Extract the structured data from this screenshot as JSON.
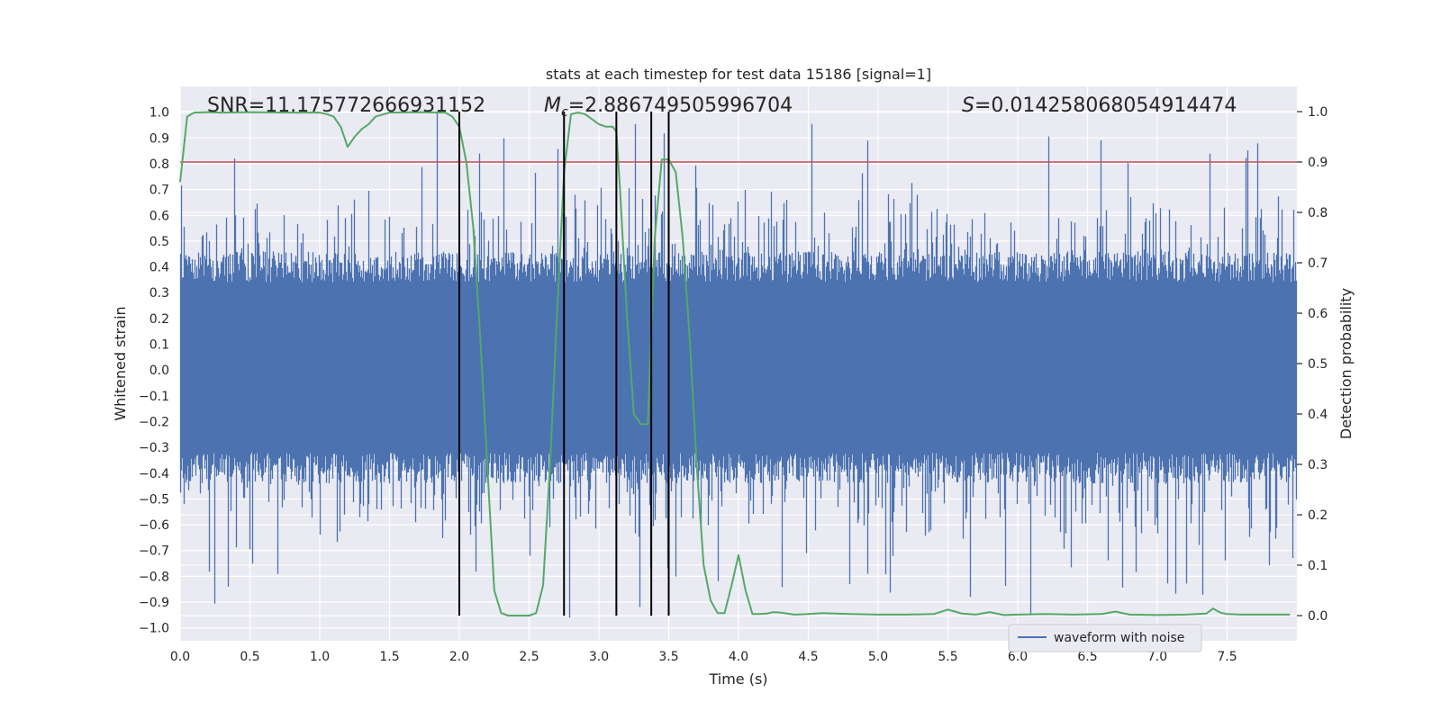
{
  "chart_data": {
    "type": "line",
    "title": "stats at each timestep for test data 15186 [signal=1]",
    "xlabel": "Time (s)",
    "ylabel": "Whitened strain",
    "y2label": "Detection probability",
    "xlim": [
      0.0,
      8.0
    ],
    "ylim": [
      -1.05,
      1.1
    ],
    "y2lim": [
      -0.05,
      1.05
    ],
    "xticks": [
      "0.0",
      "0.5",
      "1.0",
      "1.5",
      "2.0",
      "2.5",
      "3.0",
      "3.5",
      "4.0",
      "4.5",
      "5.0",
      "5.5",
      "6.0",
      "6.5",
      "7.0",
      "7.5"
    ],
    "yticks": [
      "1.0",
      "0.9",
      "0.8",
      "0.7",
      "0.6",
      "0.5",
      "0.4",
      "0.3",
      "0.2",
      "0.1",
      "0.0",
      "-0.1",
      "-0.2",
      "-0.3",
      "-0.4",
      "-0.5",
      "-0.6",
      "-0.7",
      "-0.8",
      "-0.9",
      "-1.0"
    ],
    "y2ticks": [
      "1.0",
      "0.9",
      "0.8",
      "0.7",
      "0.6",
      "0.5",
      "0.4",
      "0.3",
      "0.2",
      "0.1",
      "0.0"
    ],
    "annotations": {
      "snr": "SNR=11.175772666931152",
      "mc_symbol": "M",
      "mc_subscript": "c",
      "mc_value": "=2.886749505996704",
      "s_symbol": "S",
      "s_value": "=0.014258068054914474"
    },
    "legend": {
      "label": "waveform with noise",
      "position": "lower-right"
    },
    "threshold": {
      "value": 0.9,
      "axis": "right",
      "color": "#c44e52"
    },
    "vertical_lines": [
      2.0,
      2.75,
      3.125,
      3.375,
      3.5
    ],
    "series": [
      {
        "name": "waveform with noise",
        "color": "#4c72b0",
        "axis": "left",
        "envelope": {
          "typical_upper": 0.4,
          "typical_lower": -0.38,
          "peak_max": 1.0,
          "peak_min": -0.96
        }
      },
      {
        "name": "detection probability",
        "color": "#55a868",
        "axis": "right",
        "x": [
          0.0,
          0.05,
          0.1,
          0.2,
          0.3,
          0.5,
          0.8,
          1.0,
          1.05,
          1.1,
          1.15,
          1.2,
          1.25,
          1.3,
          1.35,
          1.4,
          1.5,
          1.7,
          1.9,
          1.95,
          2.0,
          2.05,
          2.1,
          2.15,
          2.2,
          2.25,
          2.3,
          2.35,
          2.4,
          2.5,
          2.55,
          2.6,
          2.65,
          2.7,
          2.75,
          2.8,
          2.85,
          2.9,
          2.95,
          3.0,
          3.05,
          3.1,
          3.125,
          3.15,
          3.2,
          3.25,
          3.3,
          3.35,
          3.4,
          3.45,
          3.5,
          3.55,
          3.6,
          3.65,
          3.7,
          3.75,
          3.8,
          3.85,
          3.9,
          3.95,
          4.0,
          4.05,
          4.1,
          4.15,
          4.2,
          4.25,
          4.3,
          4.4,
          4.5,
          4.6,
          4.7,
          4.8,
          5.0,
          5.2,
          5.4,
          5.5,
          5.55,
          5.6,
          5.7,
          5.8,
          5.9,
          6.0,
          6.2,
          6.4,
          6.6,
          6.7,
          6.8,
          7.0,
          7.2,
          7.35,
          7.4,
          7.45,
          7.5,
          7.6,
          7.8,
          7.95
        ],
        "values": [
          0.86,
          0.99,
          0.998,
          0.999,
          0.998,
          0.999,
          0.998,
          0.998,
          0.995,
          0.99,
          0.97,
          0.93,
          0.95,
          0.965,
          0.975,
          0.99,
          0.998,
          0.999,
          0.998,
          0.99,
          0.97,
          0.9,
          0.77,
          0.55,
          0.3,
          0.05,
          0.005,
          0.0,
          0.0,
          0.0,
          0.005,
          0.06,
          0.3,
          0.6,
          0.88,
          0.995,
          0.998,
          0.995,
          0.985,
          0.975,
          0.97,
          0.97,
          0.96,
          0.85,
          0.6,
          0.4,
          0.38,
          0.38,
          0.75,
          0.905,
          0.905,
          0.88,
          0.75,
          0.55,
          0.3,
          0.1,
          0.03,
          0.005,
          0.005,
          0.06,
          0.12,
          0.05,
          0.003,
          0.003,
          0.004,
          0.007,
          0.006,
          0.002,
          0.003,
          0.005,
          0.004,
          0.003,
          0.002,
          0.002,
          0.003,
          0.012,
          0.008,
          0.004,
          0.002,
          0.007,
          0.001,
          0.002,
          0.003,
          0.002,
          0.003,
          0.008,
          0.002,
          0.001,
          0.002,
          0.004,
          0.014,
          0.006,
          0.003,
          0.002,
          0.002,
          0.002
        ]
      }
    ]
  }
}
